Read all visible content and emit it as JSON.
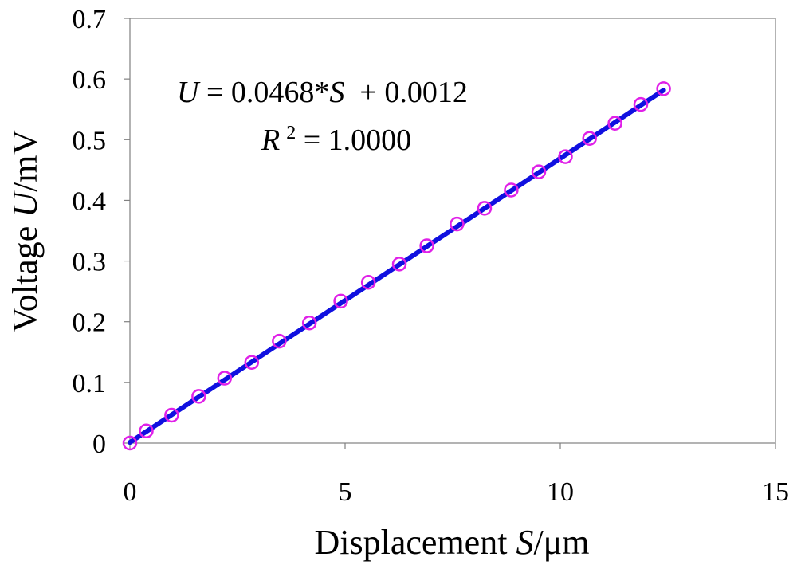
{
  "chart_data": {
    "type": "scatter",
    "xlabel": {
      "prefix": "Displacement ",
      "var": "S",
      "unit": "/μm"
    },
    "ylabel": {
      "prefix": "Voltage ",
      "var": "U",
      "unit": "/mV"
    },
    "xlim": [
      0,
      15
    ],
    "ylim": [
      0,
      0.7
    ],
    "x_ticks": [
      "0",
      "5",
      "10",
      "15"
    ],
    "y_ticks": [
      "0",
      "0.1",
      "0.2",
      "0.3",
      "0.4",
      "0.5",
      "0.6",
      "0.7"
    ],
    "grid": false,
    "marker_color": "#e020e8",
    "line_color": "#1010e0",
    "series": [
      {
        "x": [
          0,
          0.38,
          0.97,
          1.6,
          2.2,
          2.83,
          3.47,
          4.17,
          4.9,
          5.54,
          6.26,
          6.9,
          7.6,
          8.24,
          8.86,
          9.5,
          10.12,
          10.68,
          11.27,
          11.87,
          12.4
        ],
        "y": [
          0,
          0.02,
          0.046,
          0.077,
          0.107,
          0.133,
          0.168,
          0.198,
          0.234,
          0.265,
          0.295,
          0.325,
          0.361,
          0.387,
          0.417,
          0.447,
          0.472,
          0.502,
          0.527,
          0.558,
          0.584
        ]
      }
    ],
    "fit": {
      "slope": 0.0468,
      "intercept": 0.0012,
      "x_range": [
        0,
        12.4
      ]
    },
    "annotations": {
      "equation": {
        "lhs_var": "U",
        "middle": " = 0.0468*",
        "rhs_var": "S",
        "tail": "  + 0.0012"
      },
      "r2": {
        "var": "R",
        "sup": "2",
        "value": " = 1.0000"
      }
    }
  }
}
